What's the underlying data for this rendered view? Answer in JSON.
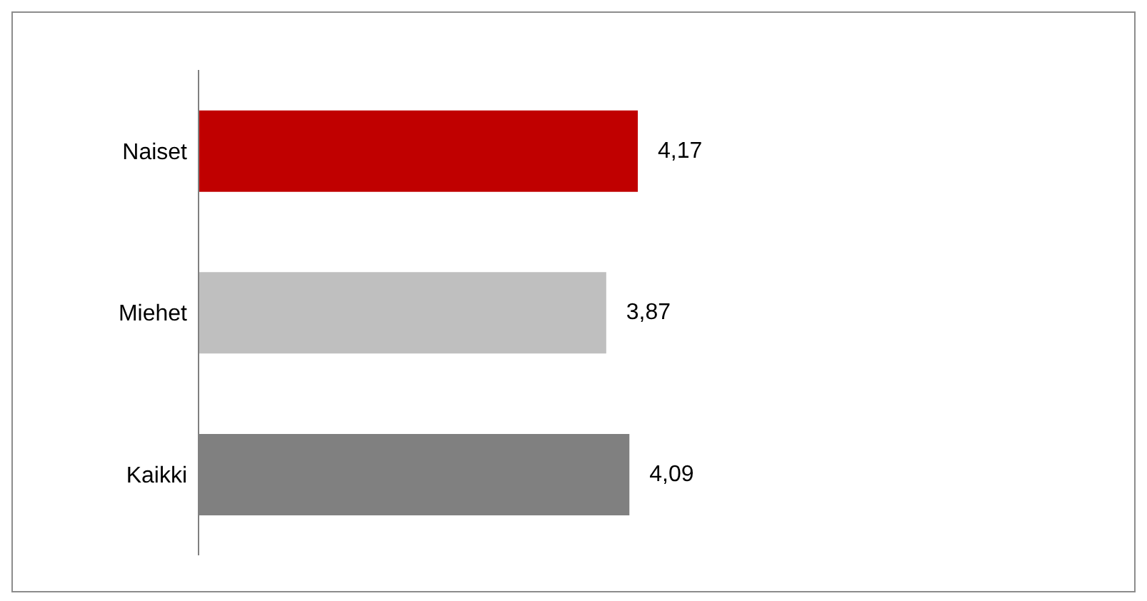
{
  "chart_data": {
    "type": "bar",
    "orientation": "horizontal",
    "categories": [
      "Naiset",
      "Miehet",
      "Kaikki"
    ],
    "values": [
      4.17,
      3.87,
      4.09
    ],
    "colors": [
      "#c00000",
      "#bfbfbf",
      "#808080"
    ],
    "value_labels": [
      "4,17",
      "3,87",
      "4,09"
    ],
    "tick_labels": "y"
  }
}
